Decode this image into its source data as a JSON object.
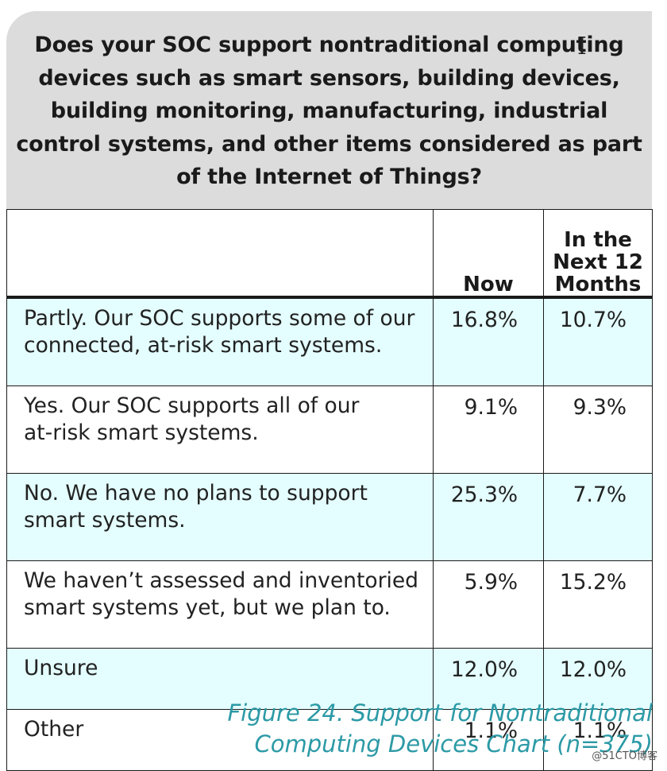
{
  "chart_data": {
    "type": "table",
    "title": "Does your SOC support nontraditional computing devices such as smart sensors, building devices, building monitoring, manufacturing, industrial control systems, and other items considered as part of the Internet of Things?",
    "columns": [
      "",
      "Now",
      "In the Next 12 Months"
    ],
    "rows": [
      {
        "label": "Partly. Our SOC supports some of our connected, at-risk smart systems.",
        "now": "16.8%",
        "next": "10.7%"
      },
      {
        "label": "Yes. Our SOC supports all of our at-risk smart systems.",
        "now": "9.1%",
        "next": "9.3%"
      },
      {
        "label": "No. We have no plans to support smart systems.",
        "now": "25.3%",
        "next": "7.7%"
      },
      {
        "label": "We haven’t assessed and inventoried smart systems yet, but we plan to.",
        "now": "5.9%",
        "next": "15.2%"
      },
      {
        "label": "Unsure",
        "now": "12.0%",
        "next": "12.0%"
      },
      {
        "label": "Other",
        "now": "1.1%",
        "next": "1.1%"
      }
    ],
    "series": [
      {
        "name": "Now",
        "values": [
          16.8,
          9.1,
          25.3,
          5.9,
          12.0,
          1.1
        ]
      },
      {
        "name": "In the Next 12 Months",
        "values": [
          10.7,
          9.3,
          7.7,
          15.2,
          12.0,
          1.1
        ]
      }
    ]
  },
  "question": {
    "text": "Does your SOC support nontraditional computing\ndevices such as smart sensors, building devices,\nbuilding monitoring, manufacturing, industrial\ncontrol systems, and other items considered as part\nof the Internet of Things?"
  },
  "table": {
    "header_now": "Now",
    "header_next": "In the\nNext 12\nMonths",
    "rows": [
      {
        "label": "Partly. Our SOC supports some of our\nconnected, at-risk smart systems.",
        "now": "16.8%",
        "next": "10.7%"
      },
      {
        "label": "Yes. Our SOC supports all of our\nat-risk smart systems.",
        "now": "9.1%",
        "next": "9.3%"
      },
      {
        "label": "No. We have no plans to support\nsmart systems.",
        "now": "25.3%",
        "next": "7.7%"
      },
      {
        "label": "We haven’t assessed and inventoried\nsmart systems yet, but we plan to.",
        "now": "5.9%",
        "next": "15.2%"
      },
      {
        "label": "Unsure",
        "now": "12.0%",
        "next": "12.0%"
      },
      {
        "label": "Other",
        "now": "1.1%",
        "next": "1.1%"
      }
    ]
  },
  "caption": "Figure 24. Support for Nontraditional\nComputing Devices Chart (n=375)",
  "watermark": "@51CTO博客",
  "colors": {
    "question_bg": "#dcdcdc",
    "shaded_row": "#e4feff",
    "caption": "#2c9aa6"
  }
}
